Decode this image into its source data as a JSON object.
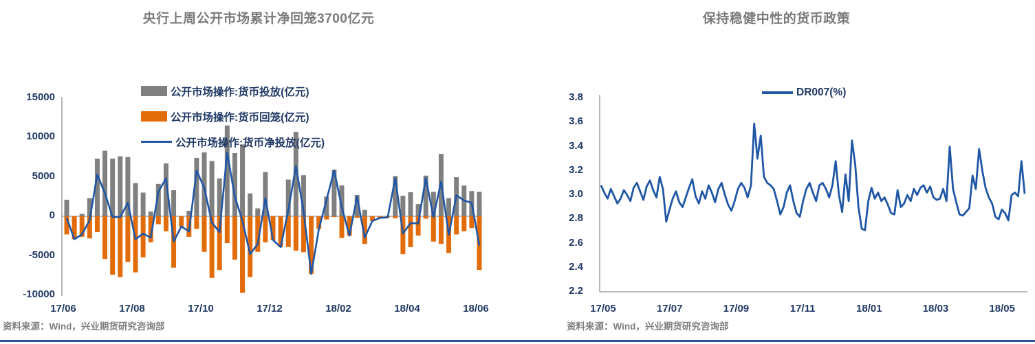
{
  "page": {
    "background": "#ffffff",
    "bottom_rule_color": "#2f5597",
    "axis_line_color": "#a6a6a6",
    "tick_label_color": "#1f3864",
    "title_color": "#7a7a7a"
  },
  "left_panel": {
    "title": "央行上周公开市场累计净回笼3700亿元",
    "source": "资料来源：Wind，兴业期货研究咨询部",
    "chart_data": {
      "type": "bar",
      "subtype": "bar+line-combo",
      "unit": "亿元",
      "frequency": "weekly",
      "x_tick_labels": [
        "17/06",
        "17/08",
        "17/10",
        "17/12",
        "18/02",
        "18/04",
        "18/06"
      ],
      "ylim": [
        -10000,
        15000
      ],
      "y_ticks": [
        15000,
        10000,
        5000,
        0,
        -5000,
        -10000
      ],
      "grid": false,
      "legend_position": "top-center",
      "series": [
        {
          "name": "公开市场操作:货币投放(亿元)",
          "type": "bar",
          "color": "#808080",
          "values": [
            2100,
            0,
            300,
            2300,
            7300,
            8300,
            7300,
            7600,
            7500,
            4200,
            3000,
            600,
            4100,
            6700,
            3300,
            0,
            700,
            7400,
            8100,
            7000,
            4800,
            11500,
            8000,
            9100,
            2900,
            1000,
            5600,
            0,
            0,
            4650,
            10700,
            5200,
            0,
            0,
            2500,
            5900,
            3900,
            0,
            2700,
            800,
            0,
            0,
            0,
            5100,
            2600,
            3050,
            1550,
            5150,
            3100,
            7900,
            2300,
            4950,
            3900,
            3200,
            3100
          ]
        },
        {
          "name": "公开市场操作:货币回笼(亿元)",
          "type": "bar",
          "color": "#e36c0a",
          "values": [
            -2300,
            -2900,
            -2600,
            -2800,
            -2000,
            -5400,
            -7400,
            -7700,
            -5800,
            -7100,
            -5200,
            -3300,
            -1000,
            -1900,
            -6500,
            -1300,
            -2600,
            -1600,
            -4500,
            -7800,
            -6800,
            -3400,
            -5500,
            -9700,
            -7700,
            -4500,
            -3300,
            -3000,
            -3900,
            -3900,
            -4350,
            -4550,
            -7300,
            -1600,
            -400,
            -100,
            -2750,
            -2450,
            -200,
            -3500,
            -600,
            -200,
            -150,
            -250,
            -4800,
            -3900,
            -2450,
            -300,
            -3200,
            -3500,
            -4650,
            -2300,
            -1900,
            -1500,
            -6800
          ]
        },
        {
          "name": "公开市场操作:货币净投放(亿元)",
          "type": "line",
          "color": "#1f56a5",
          "values": [
            -200,
            -2900,
            -2300,
            -500,
            5300,
            2900,
            -100,
            -100,
            1700,
            -2900,
            -2200,
            -2700,
            3100,
            4800,
            -3200,
            -1300,
            -1900,
            5800,
            3600,
            -800,
            -2000,
            8100,
            2500,
            -600,
            -4800,
            -3500,
            2300,
            -3000,
            -3900,
            750,
            6350,
            650,
            -7300,
            -1600,
            2100,
            5800,
            1150,
            -2450,
            2500,
            -2700,
            -600,
            -200,
            -150,
            4850,
            -2200,
            -850,
            -900,
            4850,
            -100,
            4400,
            -2350,
            2650,
            2000,
            1700,
            -3700
          ]
        }
      ]
    }
  },
  "right_panel": {
    "title": "保持稳健中性的货币政策",
    "source": "资料来源：Wind，兴业期货研究咨询部",
    "chart_data": {
      "type": "line",
      "frequency": "daily",
      "x_tick_labels": [
        "17/05",
        "17/07",
        "17/09",
        "17/11",
        "18/01",
        "18/03",
        "18/05"
      ],
      "ylim": [
        2.2,
        3.8
      ],
      "y_ticks": [
        3.8,
        3.6,
        3.4,
        3.2,
        3.0,
        2.8,
        2.6,
        2.4,
        2.2
      ],
      "grid": false,
      "legend_position": "top-center",
      "series": [
        {
          "name": "DR007(%)",
          "type": "line",
          "color": "#1f56a5",
          "values": [
            3.08,
            3.02,
            2.97,
            3.05,
            2.99,
            2.93,
            2.97,
            3.04,
            3.0,
            2.95,
            3.06,
            3.1,
            3.03,
            2.96,
            3.07,
            3.12,
            3.04,
            2.98,
            3.15,
            3.05,
            2.78,
            2.88,
            2.97,
            3.03,
            2.94,
            2.9,
            2.98,
            3.06,
            3.13,
            2.99,
            2.93,
            3.03,
            2.97,
            3.08,
            3.02,
            2.94,
            3.05,
            3.1,
            3.0,
            2.92,
            2.87,
            2.95,
            3.05,
            3.1,
            3.06,
            2.98,
            3.08,
            3.59,
            3.3,
            3.49,
            3.15,
            3.1,
            3.08,
            3.05,
            2.95,
            2.84,
            2.9,
            3.02,
            3.08,
            2.95,
            2.85,
            2.82,
            2.95,
            3.05,
            3.1,
            3.02,
            2.95,
            3.08,
            3.1,
            3.05,
            2.98,
            3.08,
            3.28,
            3.0,
            2.86,
            3.17,
            2.95,
            3.45,
            3.25,
            2.9,
            2.72,
            2.71,
            2.95,
            3.06,
            2.97,
            3.02,
            2.95,
            2.98,
            2.92,
            2.85,
            2.84,
            3.04,
            2.9,
            2.93,
            3.0,
            2.95,
            3.05,
            3.0,
            3.06,
            3.08,
            3.02,
            3.07,
            2.98,
            2.96,
            2.97,
            3.05,
            2.95,
            3.4,
            3.05,
            2.94,
            2.84,
            2.83,
            2.86,
            2.89,
            3.16,
            3.05,
            3.38,
            3.2,
            3.06,
            2.98,
            2.93,
            2.82,
            2.8,
            2.88,
            2.85,
            2.79,
            3.0,
            3.02,
            2.99,
            3.28,
            3.01
          ]
        }
      ]
    }
  }
}
